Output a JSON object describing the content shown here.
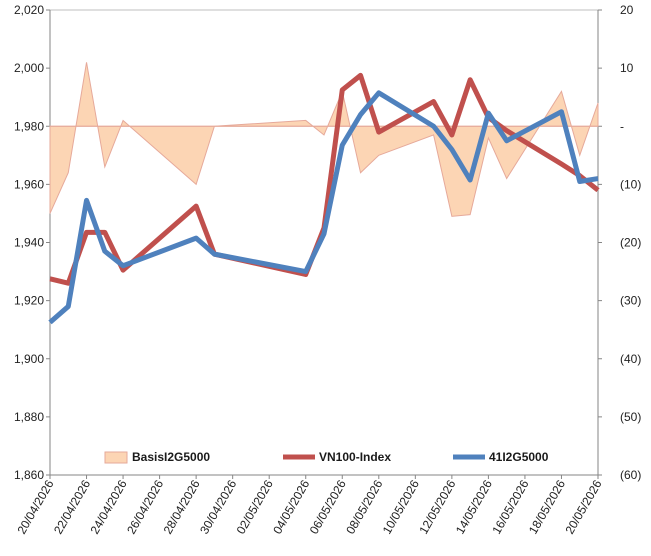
{
  "chart_data": {
    "type": "line",
    "x": [
      "20/04/2026",
      "21/04/2026",
      "22/04/2026",
      "23/04/2026",
      "24/04/2026",
      "28/04/2026",
      "29/04/2026",
      "04/05/2026",
      "05/05/2026",
      "06/05/2026",
      "07/05/2026",
      "08/05/2026",
      "11/05/2026",
      "12/05/2026",
      "13/05/2026",
      "14/05/2026",
      "15/05/2026",
      "18/05/2026",
      "19/05/2026",
      "20/05/2026"
    ],
    "x_tick_labels": [
      "20/04/2026",
      "22/04/2026",
      "24/04/2026",
      "26/04/2026",
      "28/04/2026",
      "30/04/2026",
      "02/05/2026",
      "04/05/2026",
      "06/05/2026",
      "08/05/2026",
      "10/05/2026",
      "12/05/2026",
      "14/05/2026",
      "16/05/2026",
      "18/05/2026",
      "20/05/2026"
    ],
    "y_left": {
      "ticks": [
        "1,860",
        "1,880",
        "1,900",
        "1,920",
        "1,940",
        "1,960",
        "1,980",
        "2,000",
        "2,020"
      ],
      "range": [
        1860,
        2020
      ]
    },
    "y_right": {
      "ticks": [
        "(60)",
        "(50)",
        "(40)",
        "(30)",
        "(20)",
        "(10)",
        "-",
        "10",
        "20"
      ],
      "range": [
        -60,
        20
      ]
    },
    "series": [
      {
        "name": "BasisI2G5000",
        "kind": "area",
        "axis": "right",
        "color": "#fcd5b4",
        "stroke": "#e6a99a",
        "values": [
          -15,
          -8,
          11,
          -7,
          1,
          -10,
          0,
          1,
          -1.5,
          6,
          -8,
          -5,
          -1.5,
          -15.5,
          -15.2,
          -2,
          -9,
          6,
          -5,
          4
        ]
      },
      {
        "name": "VN100-Index",
        "kind": "line",
        "axis": "left",
        "color": "#c0504d",
        "values": [
          1927.5,
          1926,
          1943.5,
          1943.5,
          1930.5,
          1952.5,
          1936,
          1929,
          1945,
          1992.5,
          1997.5,
          1978,
          1988.5,
          1977,
          1996,
          1983,
          1978.5,
          1967,
          1963,
          1958
        ]
      },
      {
        "name": "41I2G5000",
        "kind": "line",
        "axis": "left",
        "color": "#4f81bd",
        "values": [
          1912.5,
          1918,
          1954.5,
          1937,
          1932,
          1941.5,
          1936,
          1930,
          1943,
          1973.5,
          1984,
          1991.5,
          1980,
          1972,
          1961.5,
          1984.5,
          1975,
          1985,
          1961,
          1962
        ]
      }
    ],
    "legend": [
      {
        "label": "BasisI2G5000",
        "swatch": "area",
        "color": "#fcd5b4"
      },
      {
        "label": "VN100-Index",
        "swatch": "line",
        "color": "#c0504d"
      },
      {
        "label": "41I2G5000",
        "swatch": "line",
        "color": "#4f81bd"
      }
    ],
    "legend_position": "bottom",
    "grid": false
  }
}
